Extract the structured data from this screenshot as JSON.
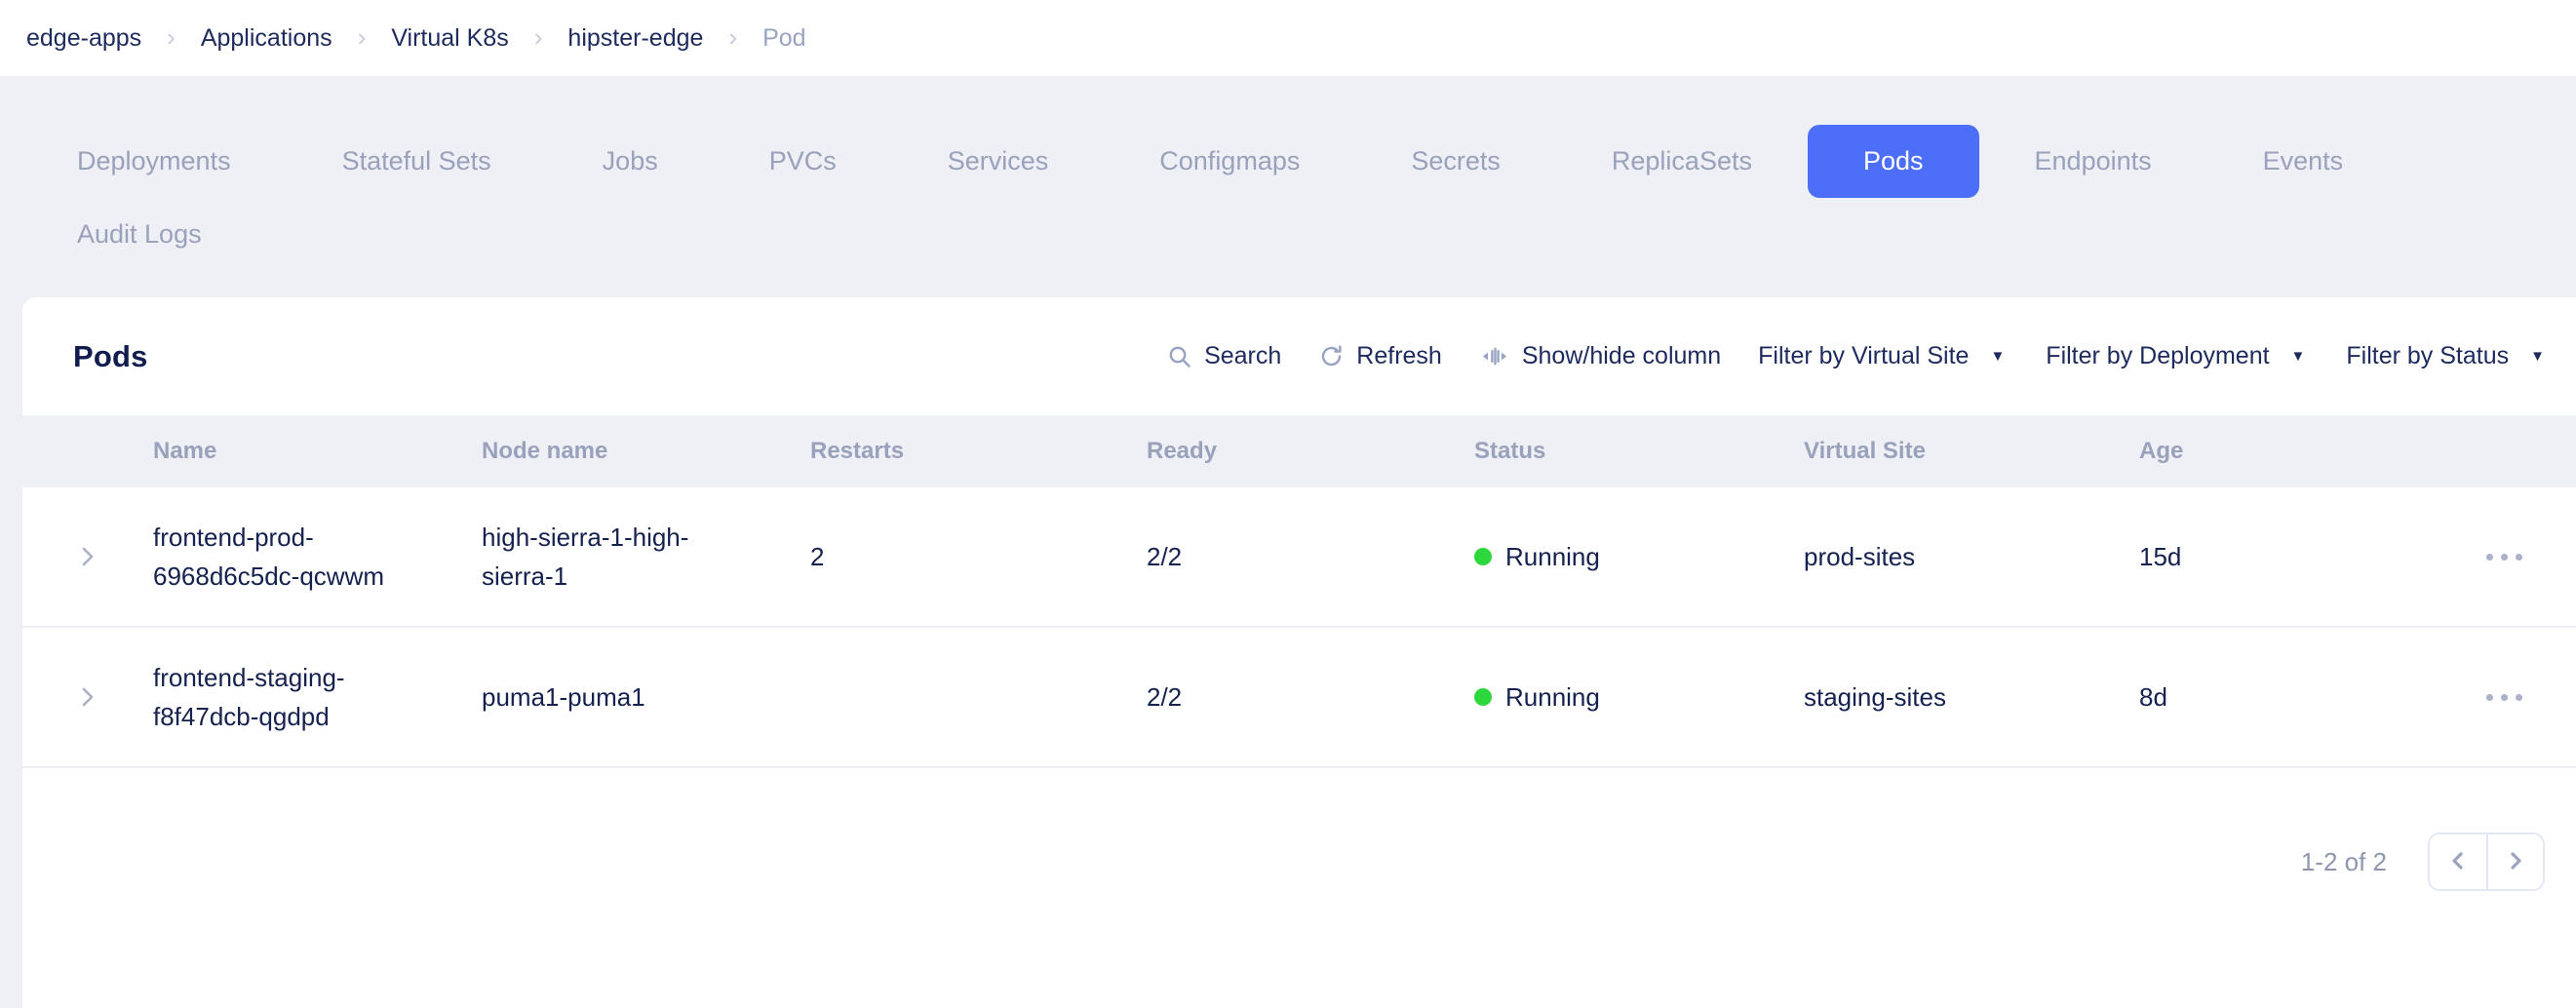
{
  "breadcrumb": {
    "separator": "›",
    "items": [
      {
        "label": "edge-apps",
        "current": false
      },
      {
        "label": "Applications",
        "current": false
      },
      {
        "label": "Virtual K8s",
        "current": false
      },
      {
        "label": "hipster-edge",
        "current": false
      },
      {
        "label": "Pod",
        "current": true
      }
    ]
  },
  "tabs": {
    "active": "Pods",
    "items": [
      "Deployments",
      "Stateful Sets",
      "Jobs",
      "PVCs",
      "Services",
      "Configmaps",
      "Secrets",
      "ReplicaSets",
      "Pods",
      "Endpoints",
      "Events",
      "Audit Logs"
    ]
  },
  "panel": {
    "title": "Pods",
    "toolbar": {
      "search_label": "Search",
      "refresh_label": "Refresh",
      "show_hide_label": "Show/hide column",
      "caret_glyph": "▼",
      "filters": [
        {
          "label": "Filter by Virtual Site"
        },
        {
          "label": "Filter by Deployment"
        },
        {
          "label": "Filter by Status"
        }
      ]
    },
    "table": {
      "columns": [
        "Name",
        "Node name",
        "Restarts",
        "Ready",
        "Status",
        "Virtual Site",
        "Age"
      ],
      "rows": [
        {
          "name": "frontend-prod-6968d6c5dc-qcwwm",
          "node_name": "high-sierra-1-high-sierra-1",
          "restarts": "2",
          "ready": "2/2",
          "status": "Running",
          "virtual_site": "prod-sites",
          "age": "15d"
        },
        {
          "name": "frontend-staging-f8f47dcb-qgdpd",
          "node_name": "puma1-puma1",
          "restarts": "",
          "ready": "2/2",
          "status": "Running",
          "virtual_site": "staging-sites",
          "age": "8d"
        }
      ]
    },
    "pagination": {
      "range_label": "1-2 of 2"
    }
  },
  "colors": {
    "accent": "#4d6ef8",
    "status_running": "#2ed83c",
    "icon_gray": "#98a2c2",
    "background": "#eef0f6"
  }
}
